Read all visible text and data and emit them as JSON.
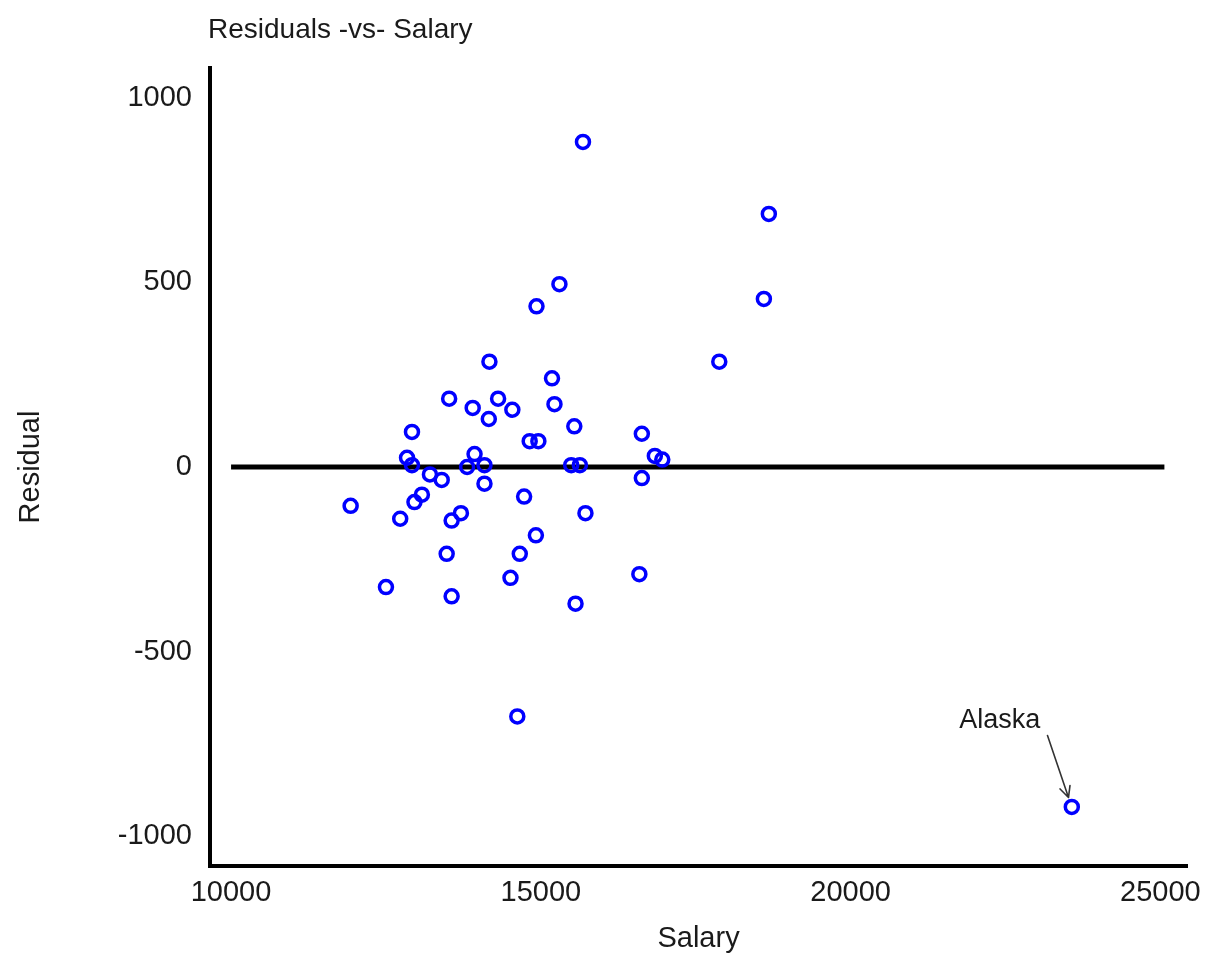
{
  "chart_data": {
    "type": "scatter",
    "title": "Residuals -vs- Salary",
    "xlabel": "Salary",
    "ylabel": "Residual",
    "x": [
      15680,
      18680,
      18600,
      15300,
      14930,
      17880,
      14170,
      15180,
      13520,
      14310,
      13900,
      14540,
      15220,
      14160,
      15540,
      12920,
      16630,
      14820,
      14960,
      13930,
      12840,
      16840,
      16960,
      12920,
      13810,
      14090,
      15490,
      15630,
      13210,
      13400,
      14090,
      16630,
      13080,
      12960,
      14730,
      11930,
      12730,
      13710,
      13560,
      15720,
      14920,
      13480,
      14660,
      16590,
      14510,
      12500,
      13560,
      15560,
      14620,
      23570
    ],
    "values": [
      880,
      685,
      455,
      495,
      435,
      285,
      285,
      240,
      185,
      185,
      160,
      155,
      170,
      130,
      110,
      95,
      90,
      70,
      70,
      35,
      25,
      30,
      20,
      5,
      0,
      5,
      5,
      5,
      -20,
      -35,
      -45,
      -30,
      -75,
      -95,
      -80,
      -105,
      -140,
      -125,
      -145,
      -125,
      -185,
      -235,
      -235,
      -290,
      -300,
      -325,
      -350,
      -370,
      -675,
      -920
    ],
    "color": "#0000ff",
    "marker": "circle",
    "xlim": [
      9660,
      25430
    ],
    "xticks": [
      10000,
      15000,
      20000,
      25000
    ],
    "ylim": [
      -1080,
      1080
    ],
    "yticks": [
      -1000,
      -500,
      0,
      500,
      1000
    ],
    "ref_lines": [
      {
        "axis": "y",
        "value": 0,
        "color": "#000000"
      }
    ],
    "annotations": [
      {
        "text": "Alaska",
        "x": 23570,
        "y": -920
      }
    ]
  }
}
